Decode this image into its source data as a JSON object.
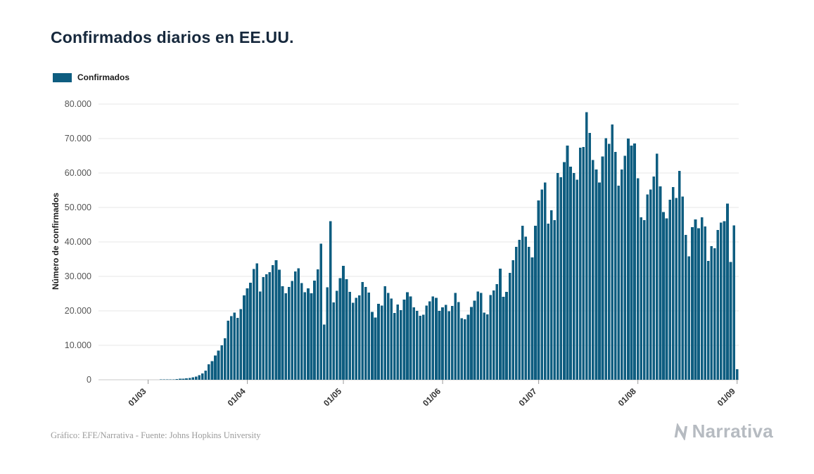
{
  "header": {
    "title": "Confirmados diarios en EE.UU."
  },
  "legend": {
    "label": "Confirmados"
  },
  "chart_data": {
    "type": "bar",
    "title": "Confirmados diarios en EE.UU.",
    "xlabel": "",
    "ylabel": "Número de confirmados",
    "ylim": [
      0,
      80000
    ],
    "grid": "horizontal",
    "legend_position": "top-left",
    "legend_entries": [
      "Confirmados"
    ],
    "bar_color": "#0e5d80",
    "ytick_values": [
      0,
      10000,
      20000,
      30000,
      40000,
      50000,
      60000,
      70000,
      80000
    ],
    "ytick_labels": [
      "0",
      "10.000",
      "20.000",
      "30.000",
      "40.000",
      "50.000",
      "60.000",
      "70.000",
      "80.000"
    ],
    "xtick_labels": [
      "01/03",
      "01/04",
      "01/05",
      "01/06",
      "01/07",
      "01/08",
      "01/09"
    ],
    "x": [
      "15/02",
      "16/02",
      "17/02",
      "18/02",
      "19/02",
      "20/02",
      "21/02",
      "22/02",
      "23/02",
      "24/02",
      "25/02",
      "26/02",
      "27/02",
      "28/02",
      "29/02",
      "01/03",
      "02/03",
      "03/03",
      "04/03",
      "05/03",
      "06/03",
      "07/03",
      "08/03",
      "09/03",
      "10/03",
      "11/03",
      "12/03",
      "13/03",
      "14/03",
      "15/03",
      "16/03",
      "17/03",
      "18/03",
      "19/03",
      "20/03",
      "21/03",
      "22/03",
      "23/03",
      "24/03",
      "25/03",
      "26/03",
      "27/03",
      "28/03",
      "29/03",
      "30/03",
      "31/03",
      "01/04",
      "02/04",
      "03/04",
      "04/04",
      "05/04",
      "06/04",
      "07/04",
      "08/04",
      "09/04",
      "10/04",
      "11/04",
      "12/04",
      "13/04",
      "14/04",
      "15/04",
      "16/04",
      "17/04",
      "18/04",
      "19/04",
      "20/04",
      "21/04",
      "22/04",
      "23/04",
      "24/04",
      "25/04",
      "26/04",
      "27/04",
      "28/04",
      "29/04",
      "30/04",
      "01/05",
      "02/05",
      "03/05",
      "04/05",
      "05/05",
      "06/05",
      "07/05",
      "08/05",
      "09/05",
      "10/05",
      "11/05",
      "12/05",
      "13/05",
      "14/05",
      "15/05",
      "16/05",
      "17/05",
      "18/05",
      "19/05",
      "20/05",
      "21/05",
      "22/05",
      "23/05",
      "24/05",
      "25/05",
      "26/05",
      "27/05",
      "28/05",
      "29/05",
      "30/05",
      "31/05",
      "01/06",
      "02/06",
      "03/06",
      "04/06",
      "05/06",
      "06/06",
      "07/06",
      "08/06",
      "09/06",
      "10/06",
      "11/06",
      "12/06",
      "13/06",
      "14/06",
      "15/06",
      "16/06",
      "17/06",
      "18/06",
      "19/06",
      "20/06",
      "21/06",
      "22/06",
      "23/06",
      "24/06",
      "25/06",
      "26/06",
      "27/06",
      "28/06",
      "29/06",
      "30/06",
      "01/07",
      "02/07",
      "03/07",
      "04/07",
      "05/07",
      "06/07",
      "07/07",
      "08/07",
      "09/07",
      "10/07",
      "11/07",
      "12/07",
      "13/07",
      "14/07",
      "15/07",
      "16/07",
      "17/07",
      "18/07",
      "19/07",
      "20/07",
      "21/07",
      "22/07",
      "23/07",
      "24/07",
      "25/07",
      "26/07",
      "27/07",
      "28/07",
      "29/07",
      "30/07",
      "31/07",
      "01/08",
      "02/08",
      "03/08",
      "04/08",
      "05/08",
      "06/08",
      "07/08",
      "08/08",
      "09/08",
      "10/08",
      "11/08",
      "12/08",
      "13/08",
      "14/08",
      "15/08",
      "16/08",
      "17/08",
      "18/08",
      "19/08",
      "20/08",
      "21/08",
      "22/08",
      "23/08",
      "24/08",
      "25/08",
      "26/08",
      "27/08",
      "28/08",
      "29/08",
      "30/08",
      "31/08",
      "01/09"
    ],
    "values": [
      0,
      0,
      0,
      0,
      0,
      0,
      0,
      0,
      0,
      0,
      6,
      5,
      8,
      10,
      18,
      30,
      25,
      35,
      45,
      60,
      80,
      105,
      120,
      150,
      200,
      270,
      350,
      450,
      560,
      750,
      900,
      1300,
      1800,
      2700,
      4500,
      5400,
      7000,
      8500,
      10000,
      12000,
      17100,
      18500,
      19500,
      18000,
      20500,
      24500,
      26500,
      28200,
      32100,
      33800,
      25600,
      29800,
      30600,
      31200,
      33300,
      34700,
      31900,
      27100,
      25100,
      26900,
      28700,
      31400,
      32300,
      28100,
      25400,
      26500,
      25100,
      28800,
      32000,
      39500,
      16000,
      26800,
      46000,
      22500,
      25800,
      29500,
      33100,
      29200,
      25500,
      22300,
      23800,
      24500,
      28400,
      26900,
      25300,
      19700,
      18100,
      22000,
      21500,
      27100,
      25200,
      23600,
      19400,
      21800,
      20200,
      23300,
      25400,
      24200,
      21000,
      20000,
      18600,
      18900,
      21500,
      22800,
      24200,
      23800,
      20000,
      21000,
      21700,
      19900,
      21400,
      25200,
      22600,
      17900,
      17600,
      18900,
      21100,
      23000,
      25600,
      25200,
      19500,
      19000,
      24600,
      25900,
      27800,
      32200,
      24100,
      25500,
      31000,
      34700,
      38600,
      40600,
      44700,
      41500,
      38600,
      35500,
      44700,
      52000,
      55200,
      57200,
      45300,
      49200,
      46300,
      60000,
      58800,
      63200,
      68000,
      61800,
      60000,
      58100,
      67300,
      67600,
      77700,
      71600,
      63800,
      61000,
      57200,
      64800,
      70100,
      68500,
      74100,
      66100,
      56300,
      61000,
      65000,
      70000,
      68000,
      68600,
      58500,
      47100,
      46300,
      53800,
      55200,
      59000,
      65600,
      56100,
      48700,
      46800,
      52200,
      55900,
      52800,
      60600,
      53200,
      42000,
      35800,
      44300,
      46500,
      44000,
      47100,
      44500,
      34500,
      38800,
      38200,
      43500,
      45600,
      46000,
      51100,
      34200,
      44800,
      3100
    ]
  },
  "footer": {
    "caption": "Gráfico: EFE/Narrativa - Fuente: Johns Hopkins University",
    "brand": "Narrativa"
  },
  "colors": {
    "bar": "#0e5d80",
    "grid": "#e7e7e7",
    "axis": "#c9c9c9",
    "tick_mark": "#9a9a9a",
    "title_text": "#16283c",
    "footer_text": "#9b9b9b",
    "brand_text": "#b6bbc1"
  }
}
